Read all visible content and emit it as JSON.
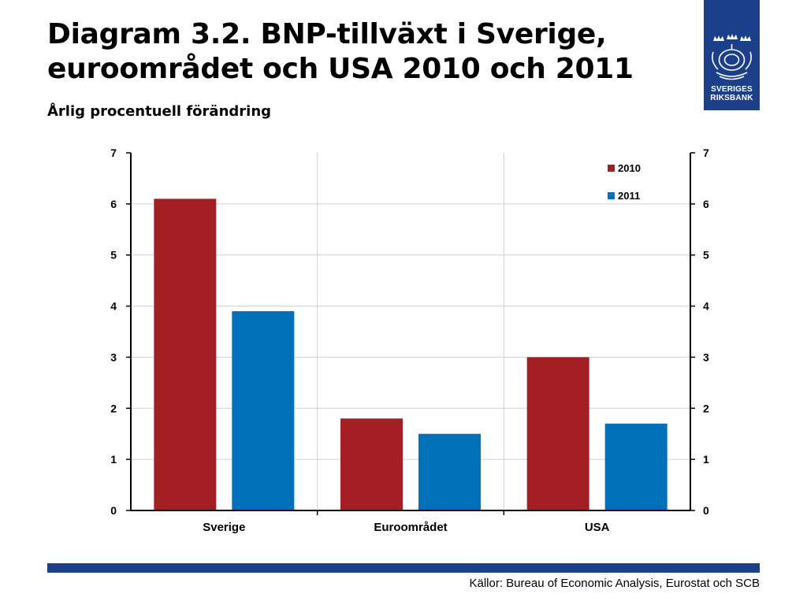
{
  "header": {
    "title": "Diagram 3.2. BNP-tillväxt i Sverige, euroområdet och USA 2010 och 2011",
    "subtitle": "Årlig procentuell förändring"
  },
  "logo": {
    "icon": "riksbank-crest-icon",
    "line1": "SVERIGES",
    "line2": "RIKSBANK"
  },
  "chart_data": {
    "type": "bar",
    "categories": [
      "Sverige",
      "Euroområdet",
      "USA"
    ],
    "series": [
      {
        "name": "2010",
        "values": [
          6.1,
          1.8,
          3.0
        ],
        "color": "#a31f24"
      },
      {
        "name": "2011",
        "values": [
          3.9,
          1.5,
          1.7
        ],
        "color": "#0070b8"
      }
    ],
    "ylim": [
      0,
      7
    ],
    "yticks": [
      0,
      1,
      2,
      3,
      4,
      5,
      6,
      7
    ],
    "secondary_yaxis": true,
    "grid": true,
    "legend_position": "top-right"
  },
  "footer": {
    "source": "Källor: Bureau of Economic Analysis, Eurostat och SCB",
    "bar_color": "#1c3f8c"
  }
}
